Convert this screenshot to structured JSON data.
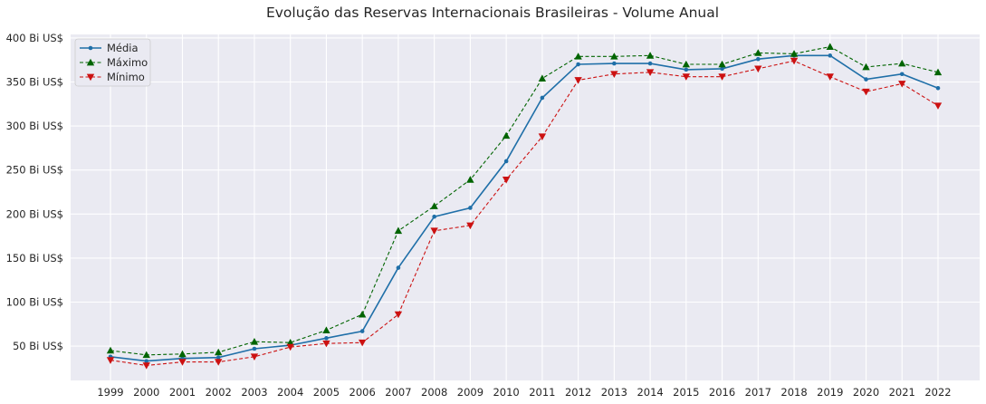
{
  "chart_data": {
    "type": "line",
    "title": "Evolução das Reservas Internacionais Brasileiras - Volume Anual",
    "xlabel": "",
    "ylabel": "",
    "categories": [
      "1999",
      "2000",
      "2001",
      "2002",
      "2003",
      "2004",
      "2005",
      "2006",
      "2007",
      "2008",
      "2009",
      "2010",
      "2011",
      "2012",
      "2013",
      "2014",
      "2015",
      "2016",
      "2017",
      "2018",
      "2019",
      "2020",
      "2021",
      "2022"
    ],
    "ylim": [
      11,
      404
    ],
    "yticks": [
      50,
      100,
      150,
      200,
      250,
      300,
      350,
      400
    ],
    "ytick_labels": [
      "50 Bi US$",
      "100 Bi US$",
      "150 Bi US$",
      "200 Bi US$",
      "250 Bi US$",
      "300 Bi US$",
      "350 Bi US$",
      "400 Bi US$"
    ],
    "grid": true,
    "legend_position": "top-left",
    "series": [
      {
        "name": "Média",
        "color": "#1f6fa8",
        "style": "solid",
        "marker": "circle",
        "values": [
          38,
          33,
          36,
          37,
          47,
          51,
          59,
          67,
          139,
          197,
          207,
          260,
          332,
          370,
          371,
          371,
          364,
          365,
          376,
          380,
          380,
          353,
          359,
          343
        ]
      },
      {
        "name": "Máximo",
        "color": "#006400",
        "style": "dashed",
        "marker": "triangle-up",
        "values": [
          45,
          40,
          41,
          43,
          55,
          54,
          68,
          86,
          181,
          209,
          239,
          289,
          354,
          379,
          379,
          380,
          370,
          370,
          383,
          382,
          390,
          367,
          371,
          361
        ]
      },
      {
        "name": "Mínimo",
        "color": "#cc1111",
        "style": "dashed",
        "marker": "triangle-down",
        "values": [
          34,
          28,
          32,
          32,
          38,
          49,
          53,
          54,
          86,
          181,
          187,
          239,
          288,
          352,
          359,
          361,
          356,
          356,
          365,
          374,
          356,
          339,
          348,
          323
        ]
      }
    ]
  }
}
